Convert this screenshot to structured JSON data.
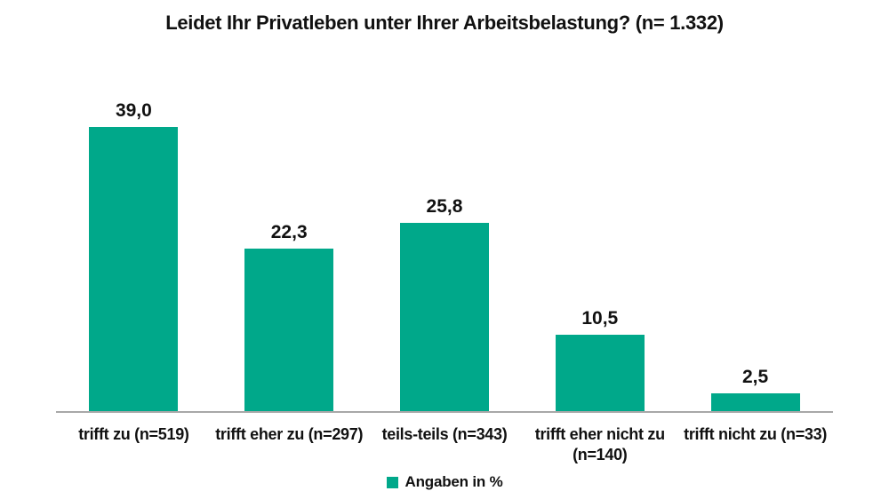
{
  "title": "Leidet Ihr Privatleben unter Ihrer Arbeitsbelastung? (n= 1.332)",
  "legend": {
    "label": "Angaben in %"
  },
  "colors": {
    "bar": "#00a88a",
    "axis_line": "#a8a8a8",
    "text": "#111111"
  },
  "chart_data": {
    "type": "bar",
    "title": "Leidet Ihr Privatleben unter Ihrer Arbeitsbelastung? (n= 1.332)",
    "categories": [
      "trifft zu (n=519)",
      "trifft eher zu (n=297)",
      "teils-teils (n=343)",
      "trifft eher nicht zu (n=140)",
      "trifft nicht zu (n=33)"
    ],
    "category_lines": [
      [
        "trifft zu (n=519)"
      ],
      [
        "trifft eher zu (n=297)"
      ],
      [
        "teils-teils (n=343)"
      ],
      [
        "trifft eher nicht zu",
        "(n=140)"
      ],
      [
        "trifft nicht zu (n=33)"
      ]
    ],
    "values": [
      39.0,
      22.3,
      25.8,
      10.5,
      2.5
    ],
    "value_labels": [
      "39,0",
      "22,3",
      "25,8",
      "10,5",
      "2,5"
    ],
    "counts": [
      519,
      297,
      343,
      140,
      33
    ],
    "n_total": "1.332",
    "unit": "%",
    "xlabel": "",
    "ylabel": "",
    "ylim": [
      0,
      44
    ],
    "grid": false,
    "legend_entries": [
      "Angaben in %"
    ],
    "legend_position": "bottom"
  }
}
